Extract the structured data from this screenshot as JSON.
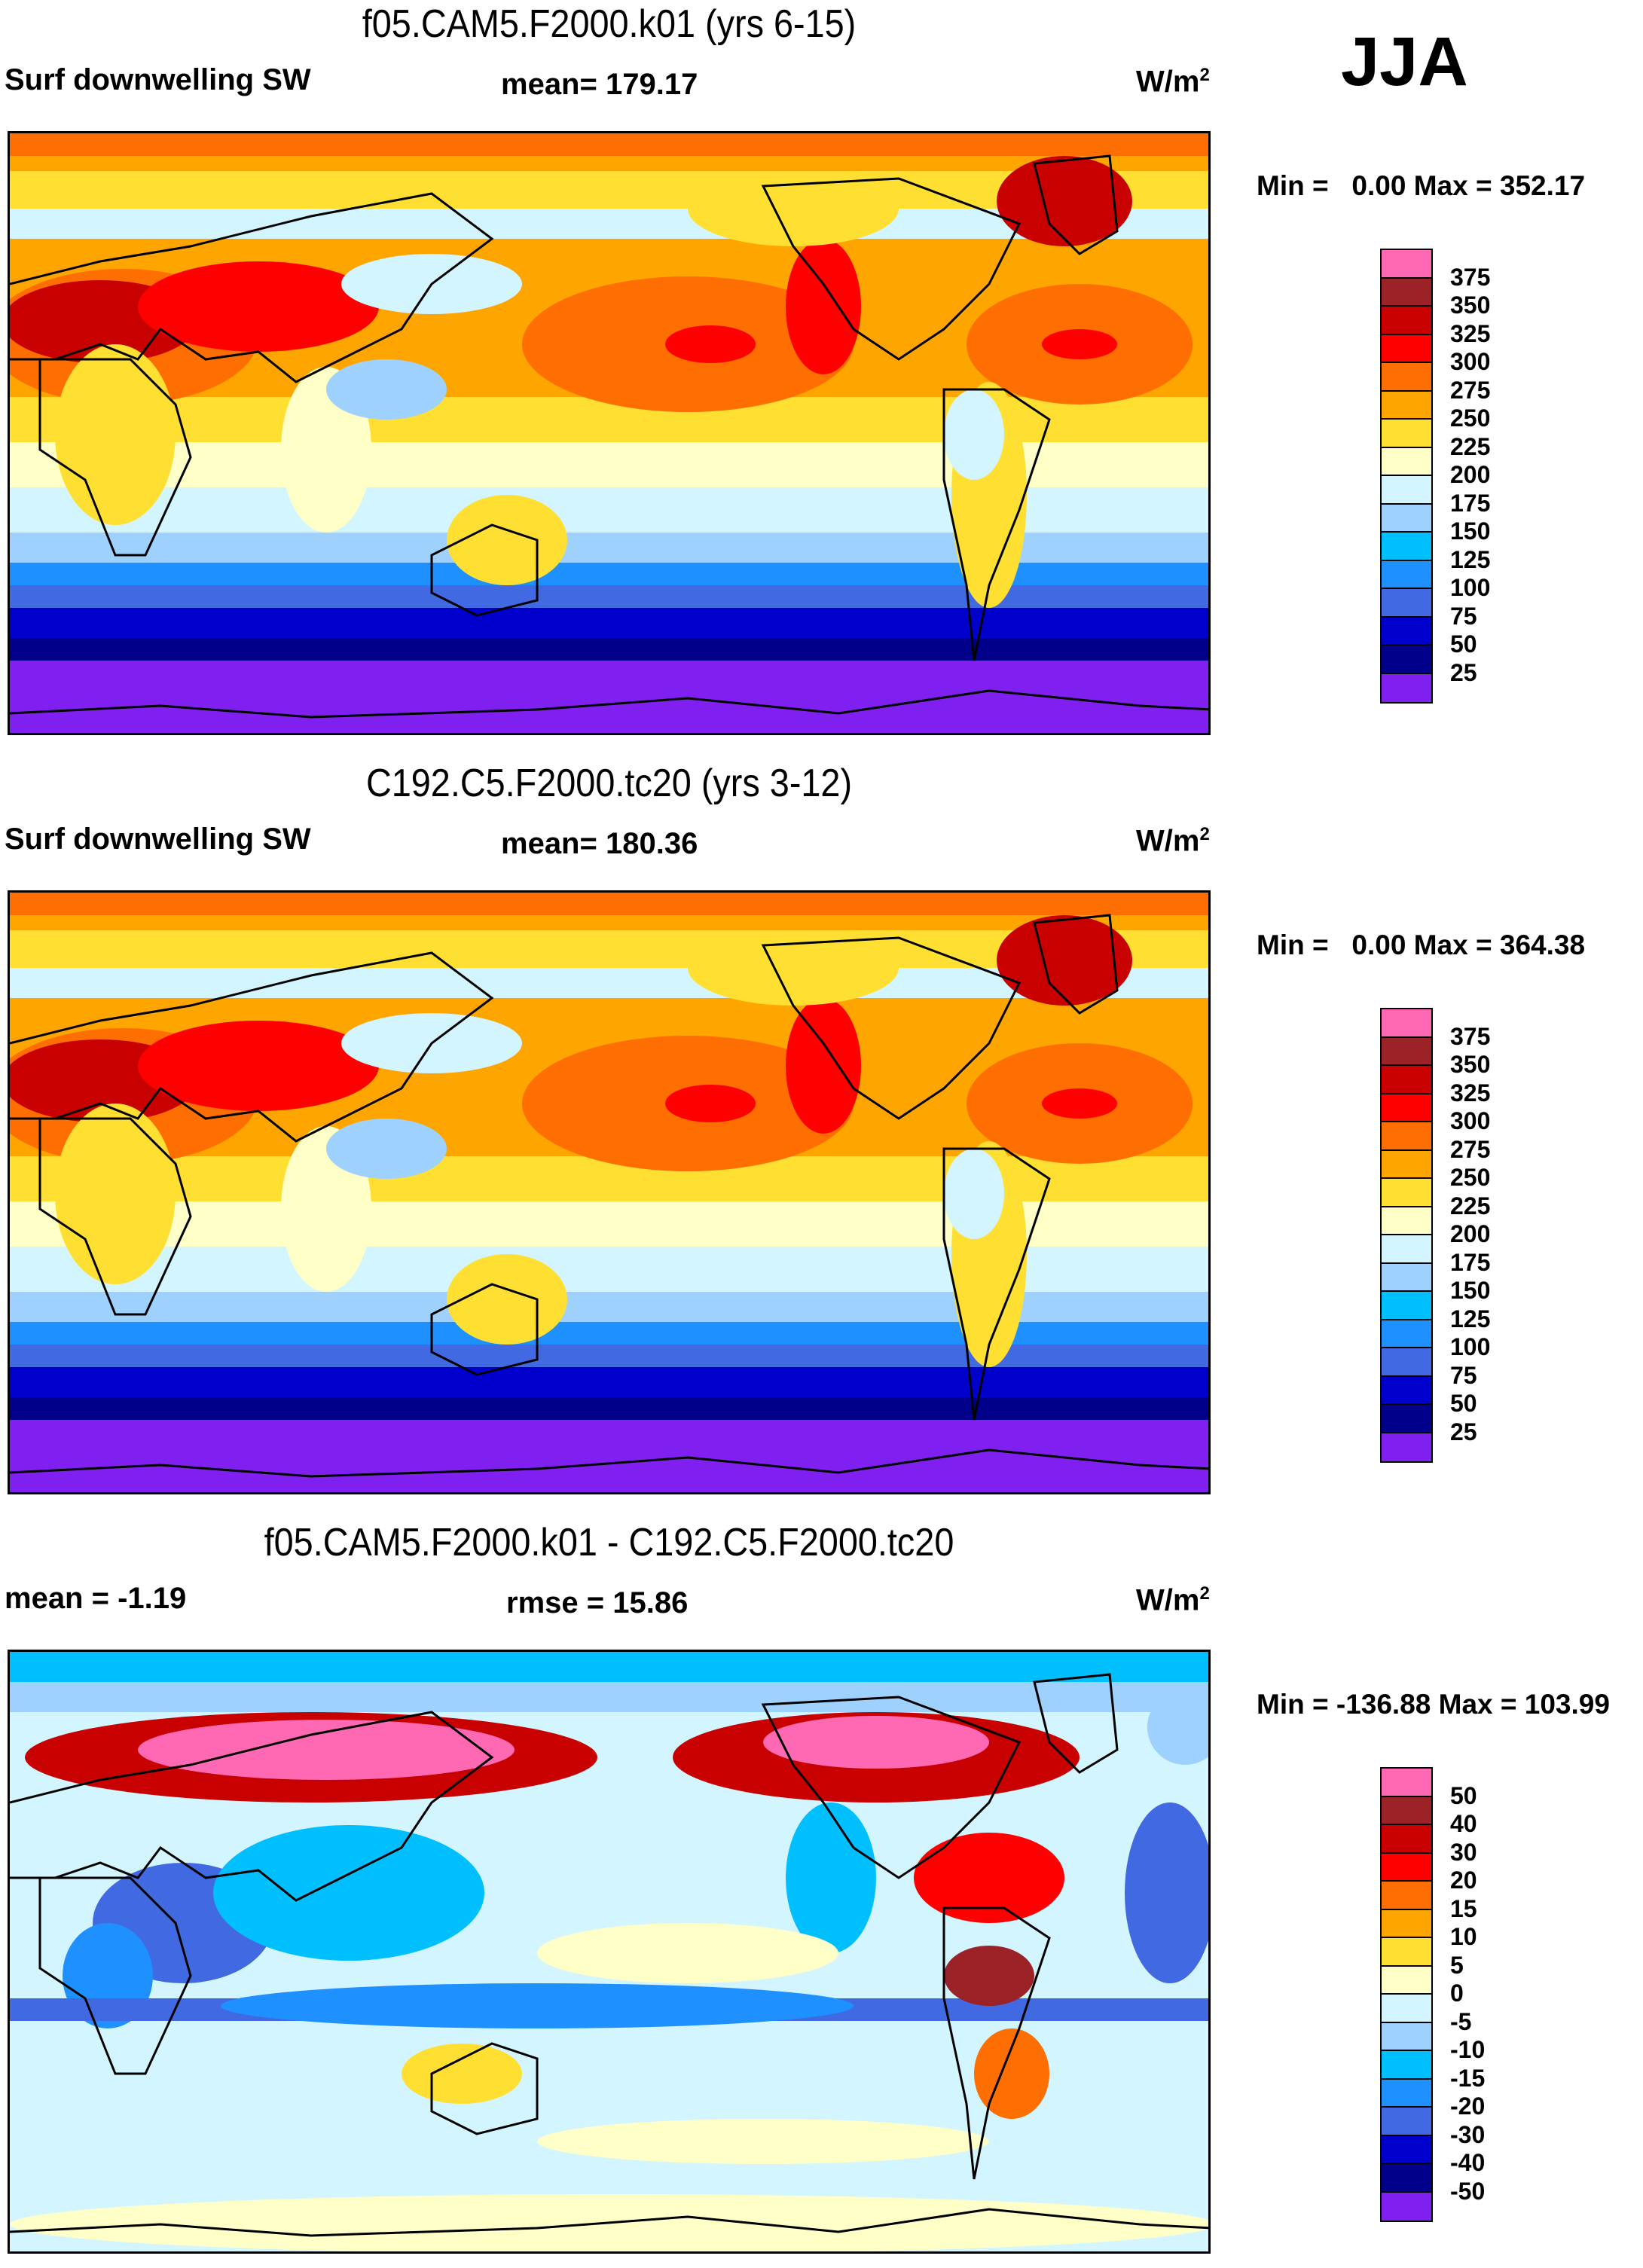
{
  "season": "JJA",
  "chart_data": [
    {
      "type": "heatmap",
      "title": "f05.CAM5.F2000.k01 (yrs 6-15)",
      "left_label": "Surf downwelling SW",
      "center_label": "mean= 179.17",
      "units": "W/m",
      "units_sup": "2",
      "minmax": "Min =   0.00 Max = 352.17",
      "levels": [
        "375",
        "350",
        "325",
        "300",
        "275",
        "250",
        "225",
        "200",
        "175",
        "150",
        "125",
        "100",
        "75",
        "50",
        "25"
      ],
      "colors": [
        "#ff69b4",
        "#9b2226",
        "#c80000",
        "#ff0000",
        "#ff6e00",
        "#ffa500",
        "#ffe032",
        "#ffffc8",
        "#d2f5ff",
        "#9fd1ff",
        "#00bfff",
        "#1e90ff",
        "#4169e1",
        "#0000cd",
        "#00008b",
        "#8020f0"
      ],
      "field": "base"
    },
    {
      "type": "heatmap",
      "title": "C192.C5.F2000.tc20 (yrs 3-12)",
      "left_label": "Surf downwelling SW",
      "center_label": "mean= 180.36",
      "units": "W/m",
      "units_sup": "2",
      "minmax": "Min =   0.00 Max = 364.38",
      "levels": [
        "375",
        "350",
        "325",
        "300",
        "275",
        "250",
        "225",
        "200",
        "175",
        "150",
        "125",
        "100",
        "75",
        "50",
        "25"
      ],
      "colors": [
        "#ff69b4",
        "#9b2226",
        "#c80000",
        "#ff0000",
        "#ff6e00",
        "#ffa500",
        "#ffe032",
        "#ffffc8",
        "#d2f5ff",
        "#9fd1ff",
        "#00bfff",
        "#1e90ff",
        "#4169e1",
        "#0000cd",
        "#00008b",
        "#8020f0"
      ],
      "field": "base"
    },
    {
      "type": "heatmap",
      "title": "f05.CAM5.F2000.k01 - C192.C5.F2000.tc20",
      "left_label": "mean =  -1.19",
      "center_label": "rmse =  15.86",
      "units": "W/m",
      "units_sup": "2",
      "minmax": "Min = -136.88 Max = 103.99",
      "levels": [
        "50",
        "40",
        "30",
        "20",
        "15",
        "10",
        "5",
        "0",
        "-5",
        "-10",
        "-15",
        "-20",
        "-30",
        "-40",
        "-50"
      ],
      "colors": [
        "#ff69b4",
        "#9b2226",
        "#c80000",
        "#ff0000",
        "#ff6e00",
        "#ffa500",
        "#ffe032",
        "#ffffc8",
        "#d2f5ff",
        "#9fd1ff",
        "#00bfff",
        "#1e90ff",
        "#4169e1",
        "#0000cd",
        "#00008b",
        "#8020f0"
      ],
      "field": "diff"
    }
  ]
}
